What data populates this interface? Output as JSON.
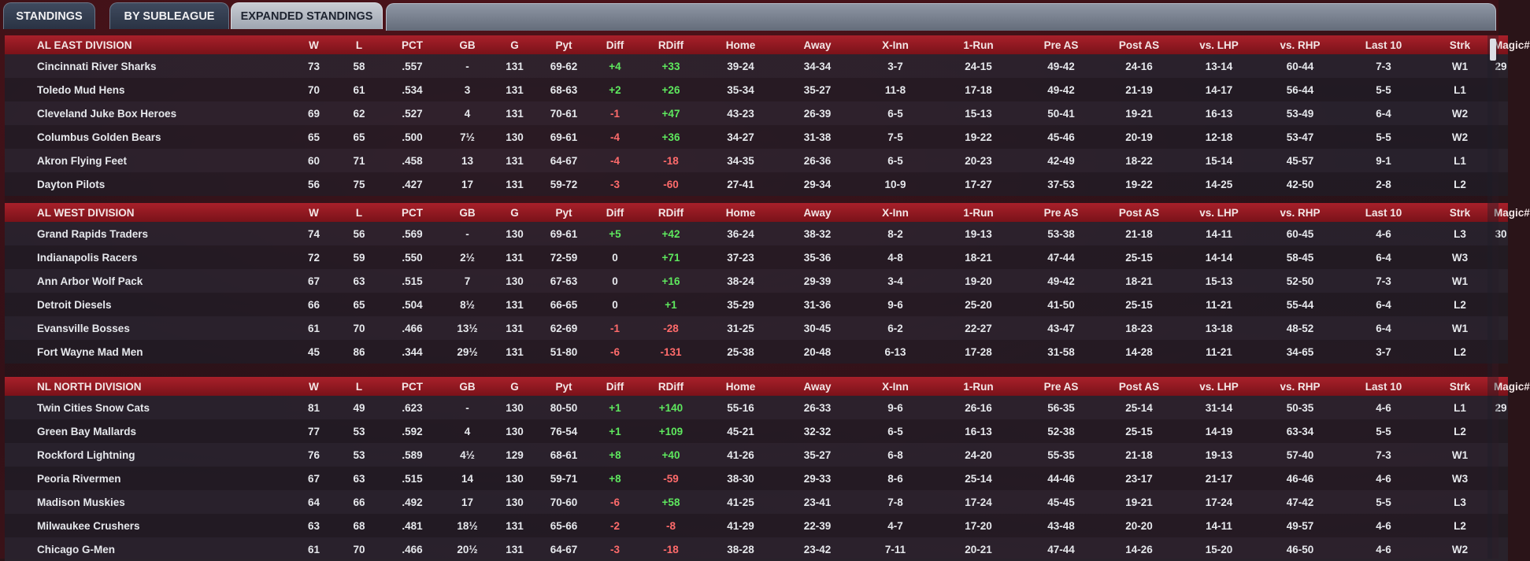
{
  "tabs": [
    {
      "label": "STANDINGS"
    },
    {
      "label": "BY SUBLEAGUE"
    },
    {
      "label": "EXPANDED STANDINGS"
    }
  ],
  "columns": [
    "W",
    "L",
    "PCT",
    "GB",
    "G",
    "Pyt",
    "Diff",
    "RDiff",
    "Home",
    "Away",
    "X-Inn",
    "1-Run",
    "Pre AS",
    "Post AS",
    "vs. LHP",
    "vs. RHP",
    "Last 10",
    "Strk",
    "Magic#"
  ],
  "divisions": [
    {
      "name": "AL EAST DIVISION",
      "teams": [
        {
          "team": "Cincinnati River Sharks",
          "w": "73",
          "l": "58",
          "pct": ".557",
          "gb": "-",
          "g": "131",
          "pyt": "69-62",
          "diff": "+4",
          "rdiff": "+33",
          "home": "39-24",
          "away": "34-34",
          "xinn": "3-7",
          "onerun": "24-15",
          "preas": "49-42",
          "postas": "24-16",
          "lhp": "13-14",
          "rhp": "60-44",
          "last10": "7-3",
          "strk": "W1",
          "magic": "29"
        },
        {
          "team": "Toledo  Mud Hens",
          "w": "70",
          "l": "61",
          "pct": ".534",
          "gb": "3",
          "g": "131",
          "pyt": "68-63",
          "diff": "+2",
          "rdiff": "+26",
          "home": "35-34",
          "away": "35-27",
          "xinn": "11-8",
          "onerun": "17-18",
          "preas": "49-42",
          "postas": "21-19",
          "lhp": "14-17",
          "rhp": "56-44",
          "last10": "5-5",
          "strk": "L1",
          "magic": ""
        },
        {
          "team": "Cleveland Juke Box Heroes",
          "w": "69",
          "l": "62",
          "pct": ".527",
          "gb": "4",
          "g": "131",
          "pyt": "70-61",
          "diff": "-1",
          "rdiff": "+47",
          "home": "43-23",
          "away": "26-39",
          "xinn": "6-5",
          "onerun": "15-13",
          "preas": "50-41",
          "postas": "19-21",
          "lhp": "16-13",
          "rhp": "53-49",
          "last10": "6-4",
          "strk": "W2",
          "magic": ""
        },
        {
          "team": "Columbus Golden Bears",
          "w": "65",
          "l": "65",
          "pct": ".500",
          "gb": "7½",
          "g": "130",
          "pyt": "69-61",
          "diff": "-4",
          "rdiff": "+36",
          "home": "34-27",
          "away": "31-38",
          "xinn": "7-5",
          "onerun": "19-22",
          "preas": "45-46",
          "postas": "20-19",
          "lhp": "12-18",
          "rhp": "53-47",
          "last10": "5-5",
          "strk": "W2",
          "magic": ""
        },
        {
          "team": "Akron  Flying Feet",
          "w": "60",
          "l": "71",
          "pct": ".458",
          "gb": "13",
          "g": "131",
          "pyt": "64-67",
          "diff": "-4",
          "rdiff": "-18",
          "home": "34-35",
          "away": "26-36",
          "xinn": "6-5",
          "onerun": "20-23",
          "preas": "42-49",
          "postas": "18-22",
          "lhp": "15-14",
          "rhp": "45-57",
          "last10": "9-1",
          "strk": "L1",
          "magic": ""
        },
        {
          "team": "Dayton Pilots",
          "w": "56",
          "l": "75",
          "pct": ".427",
          "gb": "17",
          "g": "131",
          "pyt": "59-72",
          "diff": "-3",
          "rdiff": "-60",
          "home": "27-41",
          "away": "29-34",
          "xinn": "10-9",
          "onerun": "17-27",
          "preas": "37-53",
          "postas": "19-22",
          "lhp": "14-25",
          "rhp": "42-50",
          "last10": "2-8",
          "strk": "L2",
          "magic": ""
        }
      ]
    },
    {
      "name": "AL WEST DIVISION",
      "teams": [
        {
          "team": "Grand Rapids Traders",
          "w": "74",
          "l": "56",
          "pct": ".569",
          "gb": "-",
          "g": "130",
          "pyt": "69-61",
          "diff": "+5",
          "rdiff": "+42",
          "home": "36-24",
          "away": "38-32",
          "xinn": "8-2",
          "onerun": "19-13",
          "preas": "53-38",
          "postas": "21-18",
          "lhp": "14-11",
          "rhp": "60-45",
          "last10": "4-6",
          "strk": "L3",
          "magic": "30"
        },
        {
          "team": "Indianapolis Racers",
          "w": "72",
          "l": "59",
          "pct": ".550",
          "gb": "2½",
          "g": "131",
          "pyt": "72-59",
          "diff": "0",
          "rdiff": "+71",
          "home": "37-23",
          "away": "35-36",
          "xinn": "4-8",
          "onerun": "18-21",
          "preas": "47-44",
          "postas": "25-15",
          "lhp": "14-14",
          "rhp": "58-45",
          "last10": "6-4",
          "strk": "W3",
          "magic": ""
        },
        {
          "team": "Ann Arbor Wolf Pack",
          "w": "67",
          "l": "63",
          "pct": ".515",
          "gb": "7",
          "g": "130",
          "pyt": "67-63",
          "diff": "0",
          "rdiff": "+16",
          "home": "38-24",
          "away": "29-39",
          "xinn": "3-4",
          "onerun": "19-20",
          "preas": "49-42",
          "postas": "18-21",
          "lhp": "15-13",
          "rhp": "52-50",
          "last10": "7-3",
          "strk": "W1",
          "magic": ""
        },
        {
          "team": "Detroit Diesels",
          "w": "66",
          "l": "65",
          "pct": ".504",
          "gb": "8½",
          "g": "131",
          "pyt": "66-65",
          "diff": "0",
          "rdiff": "+1",
          "home": "35-29",
          "away": "31-36",
          "xinn": "9-6",
          "onerun": "25-20",
          "preas": "41-50",
          "postas": "25-15",
          "lhp": "11-21",
          "rhp": "55-44",
          "last10": "6-4",
          "strk": "L2",
          "magic": ""
        },
        {
          "team": "Evansville Bosses",
          "w": "61",
          "l": "70",
          "pct": ".466",
          "gb": "13½",
          "g": "131",
          "pyt": "62-69",
          "diff": "-1",
          "rdiff": "-28",
          "home": "31-25",
          "away": "30-45",
          "xinn": "6-2",
          "onerun": "22-27",
          "preas": "43-47",
          "postas": "18-23",
          "lhp": "13-18",
          "rhp": "48-52",
          "last10": "6-4",
          "strk": "W1",
          "magic": ""
        },
        {
          "team": "Fort Wayne Mad Men",
          "w": "45",
          "l": "86",
          "pct": ".344",
          "gb": "29½",
          "g": "131",
          "pyt": "51-80",
          "diff": "-6",
          "rdiff": "-131",
          "home": "25-38",
          "away": "20-48",
          "xinn": "6-13",
          "onerun": "17-28",
          "preas": "31-58",
          "postas": "14-28",
          "lhp": "11-21",
          "rhp": "34-65",
          "last10": "3-7",
          "strk": "L2",
          "magic": ""
        }
      ]
    },
    {
      "name": "NL NORTH DIVISION",
      "teams": [
        {
          "team": "Twin Cities Snow Cats",
          "w": "81",
          "l": "49",
          "pct": ".623",
          "gb": "-",
          "g": "130",
          "pyt": "80-50",
          "diff": "+1",
          "rdiff": "+140",
          "home": "55-16",
          "away": "26-33",
          "xinn": "9-6",
          "onerun": "26-16",
          "preas": "56-35",
          "postas": "25-14",
          "lhp": "31-14",
          "rhp": "50-35",
          "last10": "4-6",
          "strk": "L1",
          "magic": "29"
        },
        {
          "team": "Green Bay  Mallards",
          "w": "77",
          "l": "53",
          "pct": ".592",
          "gb": "4",
          "g": "130",
          "pyt": "76-54",
          "diff": "+1",
          "rdiff": "+109",
          "home": "45-21",
          "away": "32-32",
          "xinn": "6-5",
          "onerun": "16-13",
          "preas": "52-38",
          "postas": "25-15",
          "lhp": "14-19",
          "rhp": "63-34",
          "last10": "5-5",
          "strk": "L2",
          "magic": ""
        },
        {
          "team": "Rockford Lightning",
          "w": "76",
          "l": "53",
          "pct": ".589",
          "gb": "4½",
          "g": "129",
          "pyt": "68-61",
          "diff": "+8",
          "rdiff": "+40",
          "home": "41-26",
          "away": "35-27",
          "xinn": "6-8",
          "onerun": "24-20",
          "preas": "55-35",
          "postas": "21-18",
          "lhp": "19-13",
          "rhp": "57-40",
          "last10": "7-3",
          "strk": "W1",
          "magic": ""
        },
        {
          "team": "Peoria Rivermen",
          "w": "67",
          "l": "63",
          "pct": ".515",
          "gb": "14",
          "g": "130",
          "pyt": "59-71",
          "diff": "+8",
          "rdiff": "-59",
          "home": "38-30",
          "away": "29-33",
          "xinn": "8-6",
          "onerun": "25-14",
          "preas": "44-46",
          "postas": "23-17",
          "lhp": "21-17",
          "rhp": "46-46",
          "last10": "4-6",
          "strk": "W3",
          "magic": ""
        },
        {
          "team": "Madison Muskies",
          "w": "64",
          "l": "66",
          "pct": ".492",
          "gb": "17",
          "g": "130",
          "pyt": "70-60",
          "diff": "-6",
          "rdiff": "+58",
          "home": "41-25",
          "away": "23-41",
          "xinn": "7-8",
          "onerun": "17-24",
          "preas": "45-45",
          "postas": "19-21",
          "lhp": "17-24",
          "rhp": "47-42",
          "last10": "5-5",
          "strk": "L3",
          "magic": ""
        },
        {
          "team": "Milwaukee Crushers",
          "w": "63",
          "l": "68",
          "pct": ".481",
          "gb": "18½",
          "g": "131",
          "pyt": "65-66",
          "diff": "-2",
          "rdiff": "-8",
          "home": "41-29",
          "away": "22-39",
          "xinn": "4-7",
          "onerun": "17-20",
          "preas": "43-48",
          "postas": "20-20",
          "lhp": "14-11",
          "rhp": "49-57",
          "last10": "4-6",
          "strk": "L2",
          "magic": ""
        },
        {
          "team": "Chicago G-Men",
          "w": "61",
          "l": "70",
          "pct": ".466",
          "gb": "20½",
          "g": "131",
          "pyt": "64-67",
          "diff": "-3",
          "rdiff": "-18",
          "home": "38-28",
          "away": "23-42",
          "xinn": "7-11",
          "onerun": "20-21",
          "preas": "47-44",
          "postas": "14-26",
          "lhp": "15-20",
          "rhp": "46-50",
          "last10": "4-6",
          "strk": "W2",
          "magic": ""
        }
      ]
    }
  ]
}
